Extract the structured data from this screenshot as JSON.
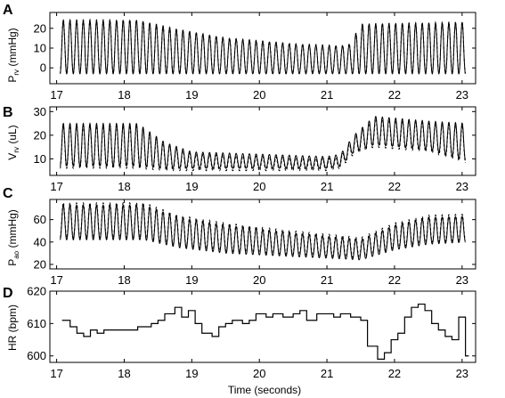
{
  "figure": {
    "xlabel": "Time (seconds)"
  },
  "panels": [
    {
      "letter": "A",
      "ylabel_main": "P",
      "ylabel_sub": "rv",
      "ylabel_rest": " (mmHg)"
    },
    {
      "letter": "B",
      "ylabel_main": "V",
      "ylabel_sub": "rv",
      "ylabel_rest": " (uL)"
    },
    {
      "letter": "C",
      "ylabel_main": "P",
      "ylabel_sub": "ao",
      "ylabel_rest": " (mmHg)"
    },
    {
      "letter": "D",
      "ylabel_main": "HR (bpm)",
      "ylabel_sub": "",
      "ylabel_rest": ""
    }
  ],
  "chart_data": [
    {
      "type": "line",
      "panel": "A",
      "xlim": [
        16.9,
        23.2
      ],
      "ylim": [
        -8,
        28
      ],
      "xticks": [
        17,
        18,
        19,
        20,
        21,
        22,
        23
      ],
      "yticks": [
        0,
        10,
        20
      ],
      "ylabel": "Prv (mmHg)",
      "series": [
        {
          "style": "solid",
          "beat_times": [
            17.05,
            23.05
          ],
          "heart_rate_bpm": 610,
          "envelope": {
            "t": [
              17.0,
              18.2,
              18.7,
              19.5,
              20.5,
              21.2,
              21.35,
              21.5,
              23.1
            ],
            "max": [
              24,
              24,
              20,
              15,
              12,
              11,
              12,
              22,
              23
            ],
            "min": [
              -3,
              -3,
              -3,
              -3,
              -3,
              -3,
              -3,
              -3,
              -3
            ]
          }
        },
        {
          "style": "dashed",
          "note": "",
          "offset": 0.3
        }
      ]
    },
    {
      "type": "line",
      "panel": "B",
      "xlim": [
        16.9,
        23.2
      ],
      "ylim": [
        3,
        32
      ],
      "xticks": [
        17,
        18,
        19,
        20,
        21,
        22,
        23
      ],
      "yticks": [
        10,
        20,
        30
      ],
      "ylabel": "Vrv (uL)",
      "series": [
        {
          "style": "solid",
          "envelope": {
            "t": [
              17.0,
              18.2,
              18.6,
              19.0,
              20.0,
              21.0,
              21.2,
              21.4,
              21.7,
              22.5,
              23.1
            ],
            "max": [
              25,
              25,
              17,
              13,
              12,
              11,
              12,
              20,
              28,
              26,
              25
            ],
            "min": [
              7,
              7,
              6,
              6,
              6,
              6,
              7,
              13,
              16,
              14,
              9
            ]
          }
        },
        {
          "style": "dashed",
          "note": "",
          "offset": -1
        }
      ]
    },
    {
      "type": "line",
      "panel": "C",
      "xlim": [
        16.9,
        23.2
      ],
      "ylim": [
        16,
        78
      ],
      "xticks": [
        17,
        18,
        19,
        20,
        21,
        22,
        23
      ],
      "yticks": [
        20,
        40,
        60
      ],
      "ylabel": "Pao (mmHg)",
      "series": [
        {
          "style": "solid",
          "envelope": {
            "t": [
              17.0,
              18.3,
              18.8,
              19.5,
              20.5,
              21.2,
              21.5,
              22.0,
              22.5,
              23.1
            ],
            "max": [
              73,
              73,
              62,
              55,
              48,
              44,
              42,
              55,
              62,
              63
            ],
            "min": [
              42,
              42,
              35,
              30,
              27,
              25,
              24,
              33,
              38,
              40
            ]
          }
        },
        {
          "style": "dashed",
          "note": "",
          "offset": 2
        }
      ]
    },
    {
      "type": "line",
      "panel": "D",
      "step": true,
      "xlim": [
        16.9,
        23.2
      ],
      "ylim": [
        598,
        620
      ],
      "xticks": [
        17,
        18,
        19,
        20,
        21,
        22,
        23
      ],
      "yticks": [
        600,
        610,
        620
      ],
      "ylabel": "HR (bpm)",
      "series": [
        {
          "name": "",
          "x": [
            17.08,
            17.2,
            17.3,
            17.4,
            17.5,
            17.6,
            17.7,
            17.9,
            18.1,
            18.2,
            18.3,
            18.4,
            18.5,
            18.6,
            18.75,
            18.85,
            18.95,
            19.05,
            19.15,
            19.3,
            19.4,
            19.5,
            19.6,
            19.75,
            19.85,
            19.95,
            20.1,
            20.2,
            20.35,
            20.5,
            20.6,
            20.7,
            20.85,
            20.95,
            21.1,
            21.2,
            21.35,
            21.5,
            21.6,
            21.75,
            21.85,
            21.95,
            22.05,
            22.15,
            22.25,
            22.35,
            22.45,
            22.55,
            22.65,
            22.75,
            22.85,
            22.95,
            23.05
          ],
          "y": [
            611,
            609,
            607,
            606,
            608,
            607,
            608,
            608,
            608,
            609,
            609,
            610,
            611,
            613,
            615,
            612,
            614,
            610,
            607,
            606,
            609,
            610,
            611,
            610,
            611,
            613,
            612,
            613,
            612,
            613,
            614,
            611,
            613,
            613,
            612,
            613,
            612,
            611,
            603,
            599,
            601,
            605,
            607,
            612,
            615,
            616,
            614,
            610,
            608,
            606,
            605,
            612,
            600
          ]
        }
      ]
    }
  ]
}
